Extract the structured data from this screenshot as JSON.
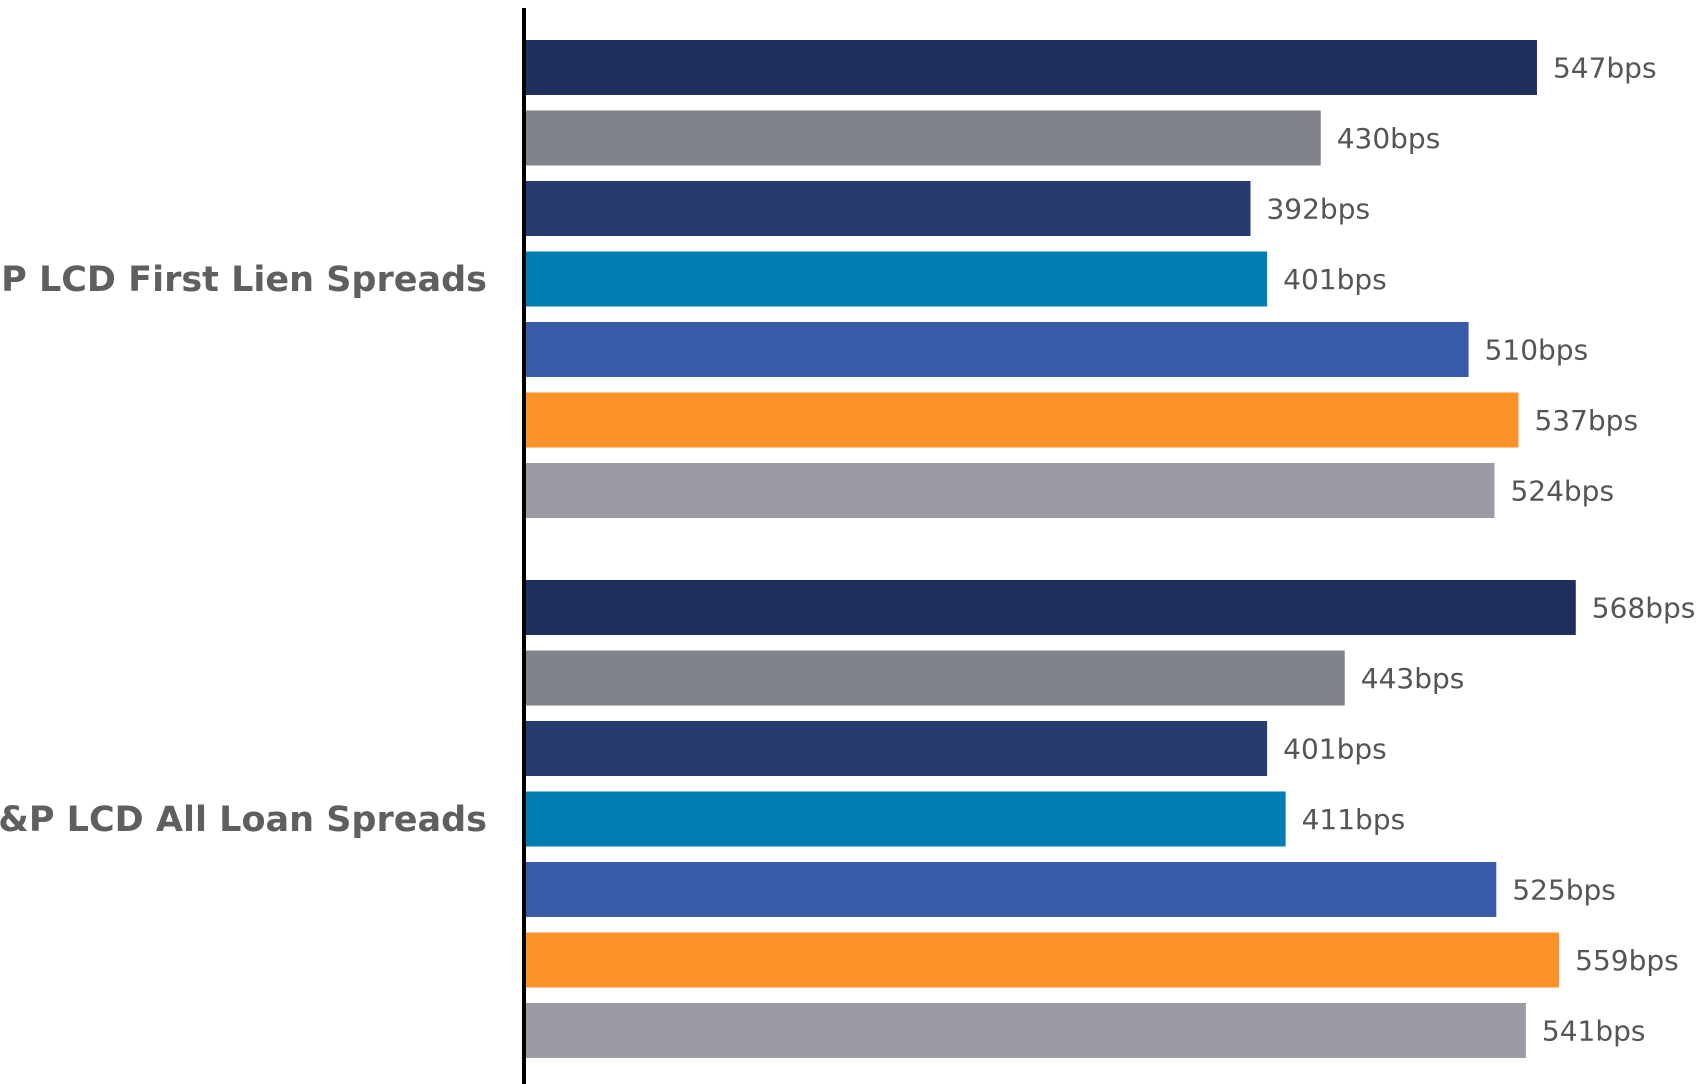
{
  "chart_data": {
    "type": "bar",
    "orientation": "horizontal",
    "title": "",
    "xlabel": "",
    "ylabel": "",
    "unit_suffix": "bps",
    "grid": false,
    "legend": "none",
    "xlim": [
      0,
      600
    ],
    "categories": [
      "S&P LCD First Lien Spreads",
      "S&P LCD All Loan Spreads"
    ],
    "series": [
      {
        "color": "#1f2f5c",
        "values": [
          547,
          568
        ]
      },
      {
        "color": "#808389",
        "values": [
          430,
          443
        ]
      },
      {
        "color": "#263b6e",
        "values": [
          392,
          401
        ]
      },
      {
        "color": "#007db2",
        "values": [
          401,
          411
        ]
      },
      {
        "color": "#3a5ba8",
        "values": [
          510,
          525
        ]
      },
      {
        "color": "#fc9328",
        "values": [
          537,
          559
        ]
      },
      {
        "color": "#9a9ba3",
        "values": [
          524,
          541
        ]
      }
    ],
    "value_labels": [
      [
        "547bps",
        "430bps",
        "392bps",
        "401bps",
        "510bps",
        "537bps",
        "524bps"
      ],
      [
        "568bps",
        "443bps",
        "401bps",
        "411bps",
        "525bps",
        "559bps",
        "541bps"
      ]
    ]
  }
}
